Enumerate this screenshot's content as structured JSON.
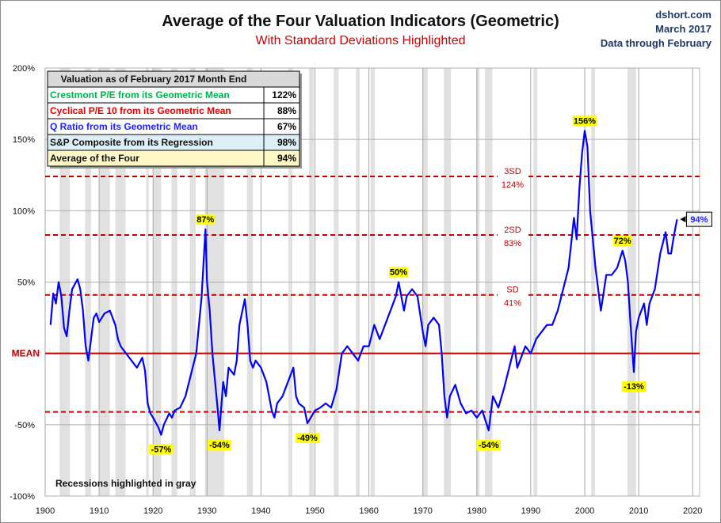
{
  "header": {
    "title": "Average of the Four Valuation Indicators (Geometric)",
    "subtitle": "With Standard Deviations Highlighted",
    "source_lines": [
      "dshort.com",
      "March 2017",
      "Data through February"
    ]
  },
  "table": {
    "title": "Valuation as of February 2017  Month End",
    "rows": [
      {
        "label": "Crestmont P/E from its Geometric Mean",
        "value": "122%",
        "color": "#00b050",
        "bg": "#ffffff"
      },
      {
        "label": "Cyclical P/E 10 from its Geometric Mean",
        "value": "88%",
        "color": "#e00000",
        "bg": "#ffffff"
      },
      {
        "label": "Q Ratio from its Geometric Mean",
        "value": "67%",
        "color": "#1f1fff",
        "bg": "#ffffff"
      },
      {
        "label": "S&P Composite from its Regression",
        "value": "98%",
        "color": "#111111",
        "bg": "#ddeef7"
      },
      {
        "label": "Average of the Four",
        "value": "94%",
        "color": "#111111",
        "bg": "#fdf8c6"
      }
    ]
  },
  "footnote": "Recessions highlighted in gray",
  "chart_data": {
    "type": "line",
    "title": "Average of the Four Valuation Indicators (Geometric)",
    "xlim": [
      1900,
      2020
    ],
    "ylim": [
      -100,
      200
    ],
    "x_ticks": [
      "1900",
      "1910",
      "1920",
      "1930",
      "1940",
      "1950",
      "1960",
      "1970",
      "1980",
      "1990",
      "2000",
      "2010",
      "2020"
    ],
    "y_ticks": [
      "200%",
      "150%",
      "100%",
      "50%",
      "MEAN",
      "-50%",
      "-100%"
    ],
    "y_tick_values": [
      200,
      150,
      100,
      50,
      0,
      -50,
      -100
    ],
    "grid": true,
    "line_color": "#0000ff",
    "reference_lines": [
      {
        "label": "3SD",
        "value_label": "124%",
        "value": 124
      },
      {
        "label": "2SD",
        "value_label": "83%",
        "value": 83
      },
      {
        "label": "SD",
        "value_label": "41%",
        "value": 41
      },
      {
        "label": "MEAN",
        "value_label": "",
        "value": 0
      },
      {
        "label": "",
        "value_label": "",
        "value": -41
      }
    ],
    "recessions": [
      [
        1902.7,
        1904.6
      ],
      [
        1907.4,
        1908.5
      ],
      [
        1910.1,
        1912.0
      ],
      [
        1913.0,
        1914.9
      ],
      [
        1918.7,
        1919.2
      ],
      [
        1920.0,
        1921.5
      ],
      [
        1923.4,
        1924.5
      ],
      [
        1926.8,
        1927.9
      ],
      [
        1929.6,
        1933.2
      ],
      [
        1937.4,
        1938.5
      ],
      [
        1945.1,
        1945.8
      ],
      [
        1948.9,
        1949.8
      ],
      [
        1953.5,
        1954.4
      ],
      [
        1957.6,
        1958.3
      ],
      [
        1960.3,
        1961.1
      ],
      [
        1969.9,
        1970.9
      ],
      [
        1973.9,
        1975.2
      ],
      [
        1980.0,
        1980.5
      ],
      [
        1981.5,
        1982.9
      ],
      [
        1990.5,
        1991.2
      ],
      [
        2001.2,
        2001.9
      ],
      [
        2007.9,
        2009.5
      ]
    ],
    "series": [
      {
        "x": [
          1901,
          1901.5,
          1902,
          1902.5,
          1903,
          1903.5,
          1904,
          1904.5,
          1905,
          1906,
          1906.5,
          1907,
          1907.5,
          1908,
          1908.5,
          1909,
          1909.5,
          1910,
          1911,
          1912,
          1913,
          1913.5,
          1914,
          1915,
          1916,
          1917,
          1918,
          1918.5,
          1919,
          1919.5,
          1920,
          1921,
          1921.5,
          1922,
          1923,
          1923.5,
          1924,
          1925,
          1926,
          1927,
          1928,
          1928.5,
          1929,
          1929.7,
          1930,
          1930.5,
          1931,
          1932,
          1932.3,
          1933,
          1933.5,
          1934,
          1935,
          1935.5,
          1936,
          1937,
          1937.5,
          1938,
          1938.5,
          1939,
          1940,
          1941,
          1942,
          1942.5,
          1943,
          1944,
          1945,
          1946,
          1946.5,
          1947,
          1948,
          1948.6,
          1950,
          1951,
          1952,
          1953,
          1954,
          1955,
          1956,
          1957,
          1958,
          1959,
          1960,
          1961,
          1962,
          1963,
          1964,
          1965,
          1965.5,
          1966.5,
          1967,
          1968,
          1969,
          1970,
          1970.5,
          1971,
          1972,
          1973,
          1973.5,
          1974,
          1974.5,
          1975,
          1976,
          1977,
          1978,
          1979,
          1980,
          1981,
          1982.2,
          1982.5,
          1983,
          1984,
          1985,
          1986,
          1987,
          1987.5,
          1988,
          1989,
          1990,
          1991,
          1992,
          1993,
          1994,
          1995,
          1996,
          1997,
          1998,
          1998.5,
          1999,
          1999.5,
          2000,
          2000.5,
          2001,
          2001.5,
          2002,
          2002.5,
          2003,
          2004,
          2005,
          2006,
          2007,
          2007.5,
          2008,
          2008.5,
          2009.1,
          2009.5,
          2010,
          2011,
          2011.5,
          2012,
          2013,
          2014,
          2015,
          2015.5,
          2016,
          2016.5,
          2017.1
        ],
        "y": [
          20,
          42,
          35,
          50,
          40,
          18,
          12,
          30,
          45,
          52,
          45,
          30,
          5,
          -5,
          10,
          25,
          28,
          22,
          28,
          30,
          20,
          10,
          5,
          0,
          -5,
          -10,
          -3,
          -12,
          -35,
          -42,
          -45,
          -52,
          -57,
          -50,
          -42,
          -45,
          -40,
          -38,
          -30,
          -15,
          0,
          20,
          40,
          87,
          50,
          30,
          0,
          -40,
          -54,
          -20,
          -30,
          -10,
          -15,
          -5,
          20,
          38,
          20,
          -5,
          -10,
          -5,
          -10,
          -20,
          -40,
          -45,
          -35,
          -30,
          -20,
          -10,
          -30,
          -35,
          -38,
          -49,
          -40,
          -38,
          -35,
          -38,
          -25,
          0,
          5,
          0,
          -5,
          5,
          5,
          20,
          10,
          20,
          30,
          40,
          50,
          30,
          40,
          45,
          40,
          15,
          5,
          20,
          25,
          20,
          0,
          -30,
          -45,
          -30,
          -22,
          -35,
          -42,
          -40,
          -45,
          -40,
          -54,
          -45,
          -30,
          -38,
          -25,
          -10,
          5,
          -10,
          -5,
          5,
          0,
          10,
          15,
          20,
          20,
          30,
          45,
          60,
          95,
          80,
          115,
          140,
          156,
          145,
          100,
          80,
          60,
          45,
          30,
          55,
          55,
          60,
          72,
          65,
          50,
          20,
          -13,
          15,
          25,
          35,
          20,
          35,
          45,
          70,
          85,
          70,
          70,
          82,
          94
        ]
      }
    ],
    "annotations": [
      {
        "text": "87%",
        "x": 1929.7,
        "y": 87,
        "pos": "above"
      },
      {
        "text": "-57%",
        "x": 1921.5,
        "y": -57,
        "pos": "below"
      },
      {
        "text": "-54%",
        "x": 1932.3,
        "y": -54,
        "pos": "below"
      },
      {
        "text": "-49%",
        "x": 1948.6,
        "y": -49,
        "pos": "below"
      },
      {
        "text": "50%",
        "x": 1965.5,
        "y": 50,
        "pos": "above"
      },
      {
        "text": "-54%",
        "x": 1982.2,
        "y": -54,
        "pos": "below"
      },
      {
        "text": "156%",
        "x": 2000,
        "y": 156,
        "pos": "above"
      },
      {
        "text": "72%",
        "x": 2007,
        "y": 72,
        "pos": "above"
      },
      {
        "text": "-13%",
        "x": 2009.1,
        "y": -13,
        "pos": "below"
      }
    ],
    "last_value_label": "94%"
  }
}
